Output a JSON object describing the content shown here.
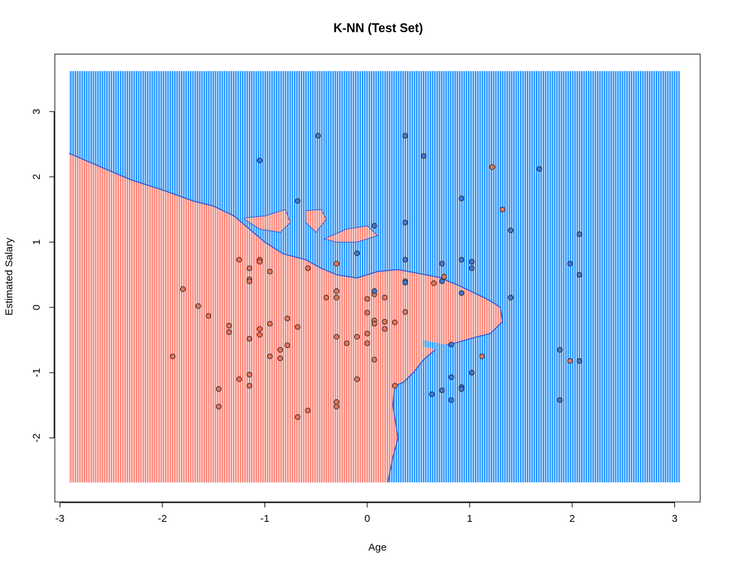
{
  "chart_data": {
    "type": "scatter",
    "title": "K-NN (Test Set)",
    "xlabel": "Age",
    "ylabel": "Estimated Salary",
    "xlim": [
      -3.05,
      3.25
    ],
    "ylim": [
      -2.98,
      3.88
    ],
    "grid_extent": {
      "x": [
        -2.91,
        3.05
      ],
      "y": [
        -2.68,
        3.62
      ]
    },
    "x_ticks": [
      "-3",
      "-2",
      "-1",
      "0",
      "1",
      "2",
      "3"
    ],
    "y_ticks": [
      "-2",
      "-1",
      "0",
      "1",
      "2",
      "3"
    ],
    "region_colors": {
      "class_0": "#FA8072",
      "class_1": "#1E90FF"
    },
    "point_colors": {
      "class_0": "#E8735A",
      "class_1": "#3E76D6"
    },
    "boundary_polygon": [
      [
        -2.91,
        2.36
      ],
      [
        -2.6,
        2.15
      ],
      [
        -2.3,
        1.95
      ],
      [
        -2.0,
        1.8
      ],
      [
        -1.7,
        1.63
      ],
      [
        -1.5,
        1.55
      ],
      [
        -1.3,
        1.4
      ],
      [
        -1.15,
        1.2
      ],
      [
        -1.0,
        1.0
      ],
      [
        -0.82,
        0.82
      ],
      [
        -0.6,
        0.73
      ],
      [
        -0.45,
        0.6
      ],
      [
        -0.3,
        0.5
      ],
      [
        -0.1,
        0.45
      ],
      [
        0.1,
        0.55
      ],
      [
        0.3,
        0.58
      ],
      [
        0.5,
        0.52
      ],
      [
        0.7,
        0.46
      ],
      [
        0.9,
        0.33
      ],
      [
        1.1,
        0.18
      ],
      [
        1.2,
        0.1
      ],
      [
        1.3,
        0.0
      ],
      [
        1.32,
        -0.22
      ],
      [
        1.2,
        -0.4
      ],
      [
        1.0,
        -0.48
      ],
      [
        0.85,
        -0.55
      ],
      [
        0.7,
        -0.6
      ],
      [
        0.55,
        -0.8
      ],
      [
        0.45,
        -1.0
      ],
      [
        0.35,
        -1.15
      ],
      [
        0.27,
        -1.2
      ],
      [
        0.25,
        -1.5
      ],
      [
        0.3,
        -2.0
      ],
      [
        0.25,
        -2.3
      ],
      [
        0.2,
        -2.68
      ],
      [
        -2.91,
        -2.68
      ]
    ],
    "islands": {
      "class_0": [
        [
          [
            -1.2,
            1.37
          ],
          [
            -1.0,
            1.4
          ],
          [
            -0.8,
            1.5
          ],
          [
            -0.75,
            1.3
          ],
          [
            -0.85,
            1.15
          ],
          [
            -1.05,
            1.2
          ],
          [
            -1.2,
            1.35
          ]
        ],
        [
          [
            -0.6,
            1.48
          ],
          [
            -0.45,
            1.5
          ],
          [
            -0.4,
            1.35
          ],
          [
            -0.5,
            1.15
          ],
          [
            -0.6,
            1.3
          ]
        ],
        [
          [
            -0.42,
            1.05
          ],
          [
            -0.2,
            1.2
          ],
          [
            0.0,
            1.25
          ],
          [
            0.1,
            1.1
          ],
          [
            -0.1,
            1.0
          ],
          [
            -0.3,
            1.0
          ]
        ]
      ],
      "class_1": [
        [
          [
            0.55,
            -0.5
          ],
          [
            0.8,
            -0.58
          ],
          [
            0.68,
            -0.65
          ],
          [
            0.55,
            -0.6
          ]
        ]
      ]
    },
    "series": [
      {
        "class": 0,
        "points": [
          [
            -1.9,
            -0.75
          ],
          [
            -1.8,
            0.28
          ],
          [
            -1.65,
            0.02
          ],
          [
            -1.55,
            -0.13
          ],
          [
            -1.45,
            -1.25
          ],
          [
            -1.45,
            -1.52
          ],
          [
            -1.35,
            -0.28
          ],
          [
            -1.35,
            -0.38
          ],
          [
            -1.25,
            0.73
          ],
          [
            -1.25,
            -1.1
          ],
          [
            -1.15,
            0.6
          ],
          [
            -1.15,
            0.43
          ],
          [
            -1.15,
            0.4
          ],
          [
            -1.15,
            -0.48
          ],
          [
            -1.15,
            -1.03
          ],
          [
            -1.15,
            -1.2
          ],
          [
            -1.05,
            0.73
          ],
          [
            -1.05,
            0.7
          ],
          [
            -1.05,
            -0.33
          ],
          [
            -1.05,
            -0.42
          ],
          [
            -0.95,
            0.55
          ],
          [
            -0.95,
            -0.25
          ],
          [
            -0.95,
            -0.75
          ],
          [
            -0.85,
            -0.65
          ],
          [
            -0.85,
            -0.78
          ],
          [
            -0.78,
            -0.17
          ],
          [
            -0.78,
            -0.58
          ],
          [
            -0.68,
            -0.3
          ],
          [
            -0.68,
            -1.68
          ],
          [
            -0.58,
            0.6
          ],
          [
            -0.58,
            -1.58
          ],
          [
            -0.4,
            0.15
          ],
          [
            -0.3,
            0.67
          ],
          [
            -0.3,
            0.25
          ],
          [
            -0.3,
            0.15
          ],
          [
            -0.3,
            -0.45
          ],
          [
            -0.3,
            -1.45
          ],
          [
            -0.3,
            -1.52
          ],
          [
            -0.2,
            -0.55
          ],
          [
            -0.1,
            -0.45
          ],
          [
            -0.1,
            -1.1
          ],
          [
            0.0,
            0.13
          ],
          [
            0.0,
            -0.08
          ],
          [
            0.0,
            -0.4
          ],
          [
            0.0,
            -0.55
          ],
          [
            0.07,
            0.2
          ],
          [
            0.07,
            -0.2
          ],
          [
            0.07,
            -0.25
          ],
          [
            0.07,
            -0.8
          ],
          [
            0.17,
            0.15
          ],
          [
            0.17,
            -0.22
          ],
          [
            0.17,
            -0.33
          ],
          [
            0.27,
            -0.23
          ],
          [
            0.27,
            -1.2
          ],
          [
            0.37,
            0.4
          ],
          [
            0.37,
            -0.07
          ],
          [
            0.65,
            0.37
          ],
          [
            0.75,
            0.47
          ],
          [
            1.12,
            -0.75
          ],
          [
            1.22,
            2.15
          ],
          [
            1.32,
            1.5
          ],
          [
            1.98,
            -0.82
          ]
        ]
      },
      {
        "class": 1,
        "points": [
          [
            -1.05,
            2.25
          ],
          [
            -0.68,
            1.63
          ],
          [
            -0.48,
            2.63
          ],
          [
            -0.1,
            0.83
          ],
          [
            0.07,
            1.25
          ],
          [
            0.07,
            0.25
          ],
          [
            0.37,
            2.63
          ],
          [
            0.37,
            1.3
          ],
          [
            0.37,
            0.73
          ],
          [
            0.37,
            0.38
          ],
          [
            0.55,
            2.32
          ],
          [
            0.63,
            -1.33
          ],
          [
            0.73,
            0.67
          ],
          [
            0.73,
            0.4
          ],
          [
            0.73,
            -1.27
          ],
          [
            0.82,
            -0.57
          ],
          [
            0.82,
            -1.07
          ],
          [
            0.82,
            -1.42
          ],
          [
            0.92,
            1.67
          ],
          [
            0.92,
            0.73
          ],
          [
            0.92,
            0.22
          ],
          [
            0.92,
            -1.22
          ],
          [
            0.92,
            -1.25
          ],
          [
            1.02,
            0.7
          ],
          [
            1.02,
            0.6
          ],
          [
            1.02,
            -1.0
          ],
          [
            1.4,
            1.18
          ],
          [
            1.4,
            0.15
          ],
          [
            1.68,
            2.12
          ],
          [
            1.88,
            -0.65
          ],
          [
            1.88,
            -1.42
          ],
          [
            1.98,
            0.67
          ],
          [
            2.07,
            1.12
          ],
          [
            2.07,
            0.5
          ],
          [
            2.07,
            -0.82
          ]
        ]
      }
    ]
  }
}
